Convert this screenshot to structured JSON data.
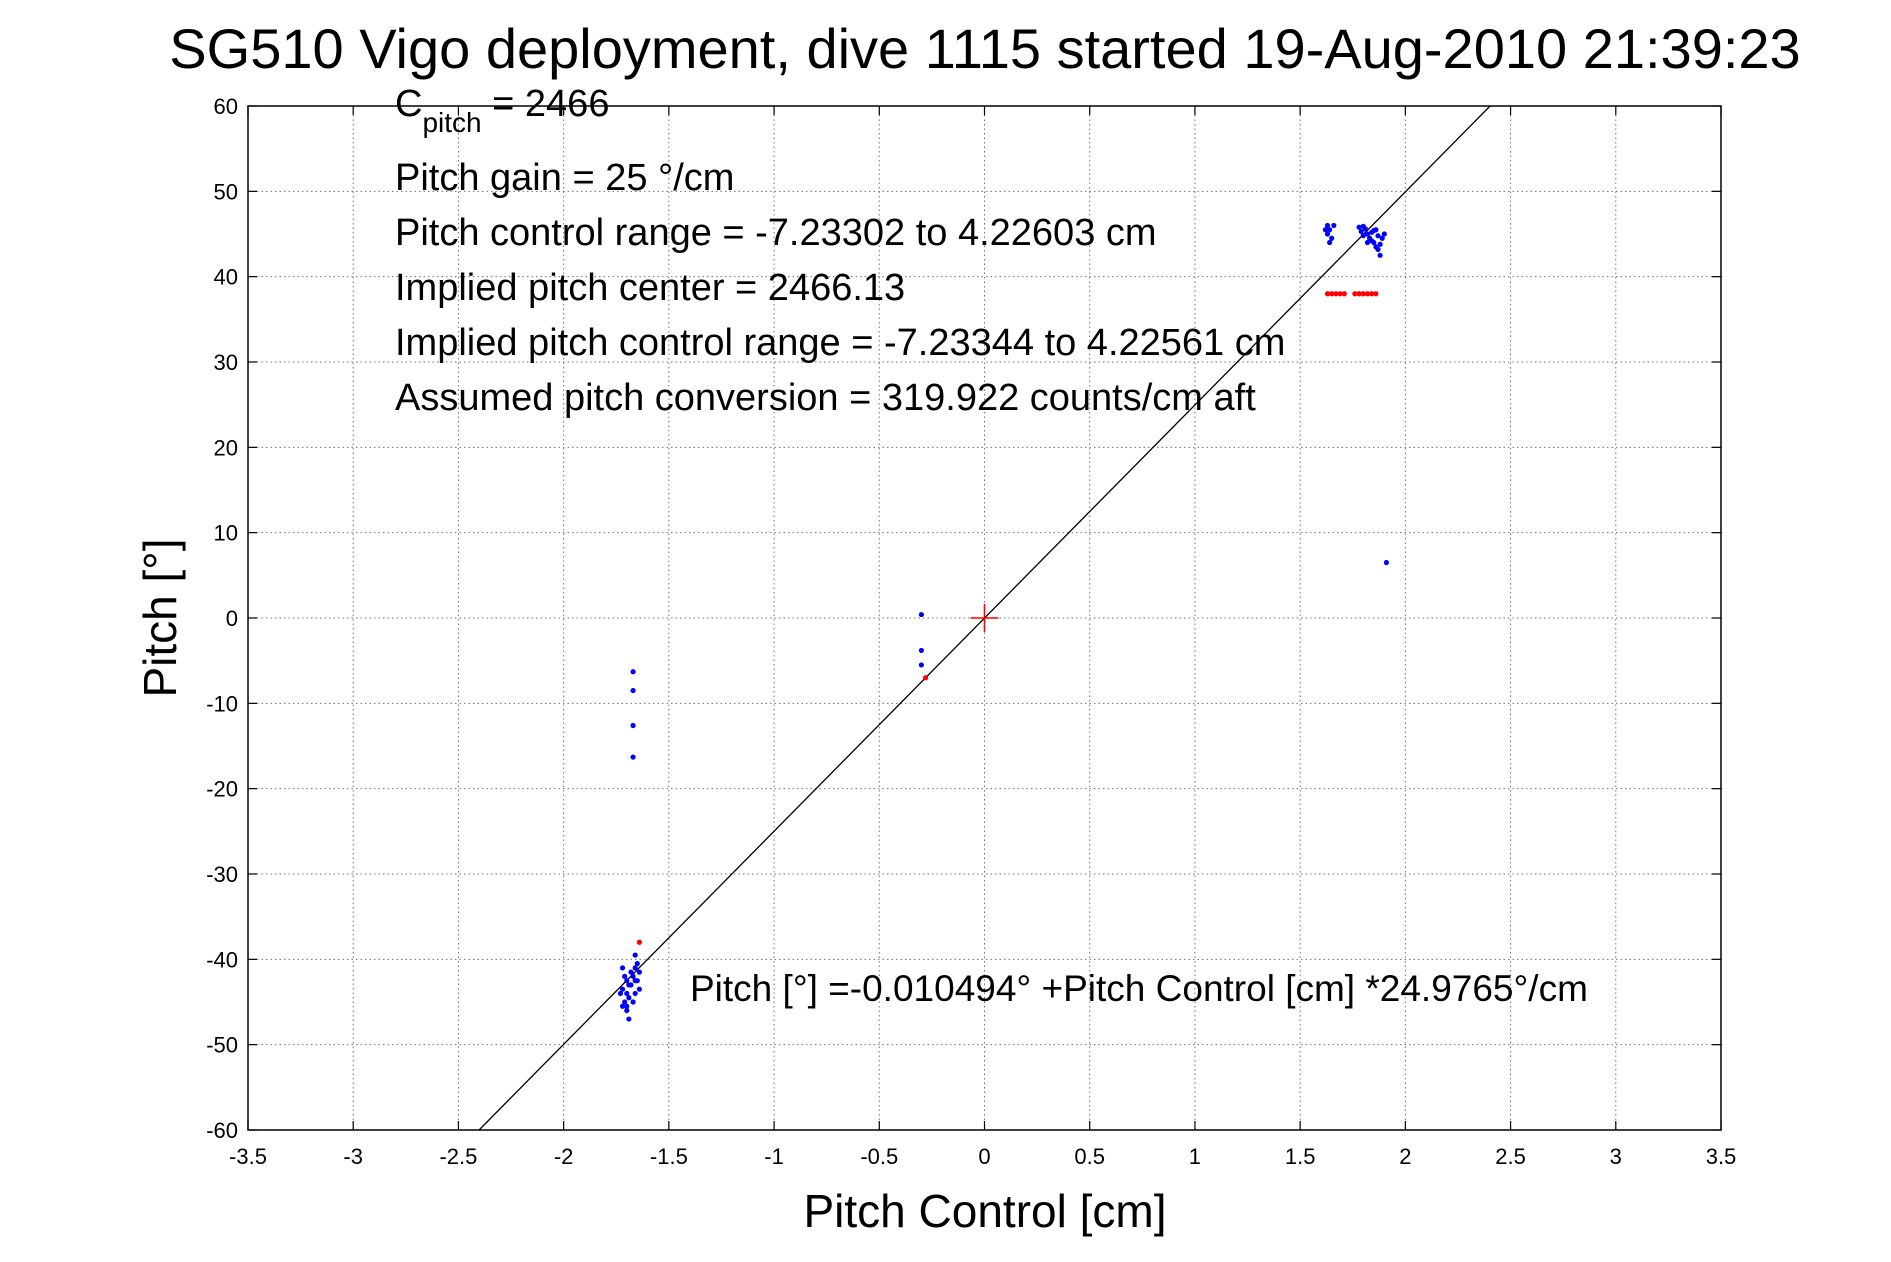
{
  "chart_data": {
    "type": "scatter",
    "title": "SG510 Vigo deployment, dive 1115 started 19-Aug-2010 21:39:23",
    "xlabel": "Pitch Control [cm]",
    "ylabel": "Pitch [°]",
    "xlim": [
      -3.5,
      3.5
    ],
    "ylim": [
      -60,
      60
    ],
    "x_ticks": [
      -3.5,
      -3,
      -2.5,
      -2,
      -1.5,
      -1,
      -0.5,
      0,
      0.5,
      1,
      1.5,
      2,
      2.5,
      3,
      3.5
    ],
    "x_tick_labels": [
      "-3.5",
      "-3",
      "-2.5",
      "-2",
      "-1.5",
      "-1",
      "-0.5",
      "0",
      "0.5",
      "1",
      "1.5",
      "2",
      "2.5",
      "3",
      "3.5"
    ],
    "y_ticks": [
      -60,
      -50,
      -40,
      -30,
      -20,
      -10,
      0,
      10,
      20,
      30,
      40,
      50,
      60
    ],
    "y_tick_labels": [
      "-60",
      "-50",
      "-40",
      "-30",
      "-20",
      "-10",
      "0",
      "10",
      "20",
      "30",
      "40",
      "50",
      "60"
    ],
    "grid": true,
    "annotations": {
      "c_pitch_main": "C",
      "c_pitch_sub": "pitch",
      "c_pitch_value": " = 2466",
      "pitch_gain": "Pitch gain = 25 °/cm",
      "pitch_control_range": "Pitch control range = -7.23302 to 4.22603 cm",
      "implied_center": "Implied pitch center = 2466.13",
      "implied_range": "Implied pitch control range = -7.23344 to 4.22561 cm",
      "assumed_conversion": "Assumed pitch conversion = 319.922 counts/cm aft",
      "fit_equation": "Pitch [°] =-0.010494° +Pitch Control [cm] *24.9765°/cm"
    },
    "fit_line": {
      "intercept": -0.010494,
      "slope": 24.9765
    },
    "center_marker": {
      "x": 0,
      "y": 0,
      "color": "#ff0000"
    },
    "series": [
      {
        "color": "#0000ff",
        "marker": "dot",
        "points": [
          [
            -1.72,
            -41.0
          ],
          [
            -1.71,
            -42.0
          ],
          [
            -1.7,
            -42.5
          ],
          [
            -1.69,
            -43.0
          ],
          [
            -1.72,
            -43.5
          ],
          [
            -1.7,
            -44.0
          ],
          [
            -1.69,
            -44.5
          ],
          [
            -1.71,
            -45.0
          ],
          [
            -1.72,
            -45.5
          ],
          [
            -1.7,
            -46.0
          ],
          [
            -1.68,
            -43.0
          ],
          [
            -1.67,
            -42.0
          ],
          [
            -1.66,
            -41.0
          ],
          [
            -1.65,
            -42.5
          ],
          [
            -1.66,
            -44.0
          ],
          [
            -1.67,
            -45.0
          ],
          [
            -1.64,
            -41.5
          ],
          [
            -1.65,
            -40.5
          ],
          [
            -1.66,
            -39.5
          ],
          [
            -1.69,
            -47.0
          ],
          [
            -1.73,
            -44.0
          ],
          [
            -1.68,
            -41.5
          ],
          [
            -1.7,
            -45.5
          ],
          [
            -1.64,
            -43.5
          ],
          [
            -1.66,
            -42.5
          ],
          [
            -1.67,
            -6.3
          ],
          [
            -1.67,
            -8.5
          ],
          [
            -1.67,
            -12.6
          ],
          [
            -1.67,
            -16.3
          ],
          [
            -0.3,
            0.4
          ],
          [
            -0.3,
            -3.8
          ],
          [
            -0.3,
            -5.5
          ],
          [
            1.91,
            6.5
          ],
          [
            1.63,
            46.0
          ],
          [
            1.64,
            45.5
          ],
          [
            1.63,
            45.0
          ],
          [
            1.65,
            44.5
          ],
          [
            1.64,
            44.0
          ],
          [
            1.62,
            45.5
          ],
          [
            1.66,
            46.0
          ],
          [
            1.78,
            45.8
          ],
          [
            1.79,
            45.3
          ],
          [
            1.8,
            44.8
          ],
          [
            1.81,
            45.6
          ],
          [
            1.82,
            45.0
          ],
          [
            1.83,
            44.5
          ],
          [
            1.84,
            45.2
          ],
          [
            1.85,
            44.0
          ],
          [
            1.86,
            43.5
          ],
          [
            1.87,
            44.8
          ],
          [
            1.88,
            43.8
          ],
          [
            1.88,
            42.5
          ],
          [
            1.89,
            44.5
          ],
          [
            1.86,
            45.5
          ],
          [
            1.84,
            44.2
          ],
          [
            1.82,
            44.0
          ],
          [
            1.8,
            45.9
          ],
          [
            1.87,
            43.2
          ],
          [
            1.9,
            45.0
          ],
          [
            1.85,
            45.4
          ]
        ]
      },
      {
        "color": "#ff0000",
        "marker": "dot",
        "points": [
          [
            1.63,
            38.0
          ],
          [
            1.65,
            38.0
          ],
          [
            1.67,
            38.0
          ],
          [
            1.69,
            38.0
          ],
          [
            1.71,
            38.0
          ],
          [
            1.76,
            38.0
          ],
          [
            1.78,
            38.0
          ],
          [
            1.8,
            38.0
          ],
          [
            1.82,
            38.0
          ],
          [
            1.84,
            38.0
          ],
          [
            1.86,
            38.0
          ],
          [
            -0.28,
            -7.0
          ],
          [
            -1.64,
            -38.0
          ]
        ]
      }
    ]
  }
}
